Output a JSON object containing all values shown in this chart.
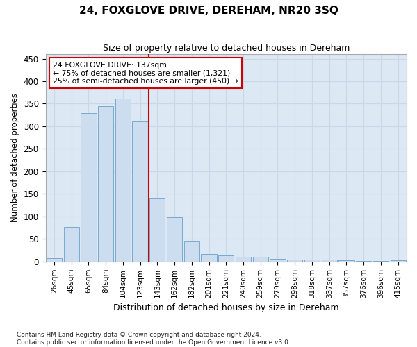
{
  "title": "24, FOXGLOVE DRIVE, DEREHAM, NR20 3SQ",
  "subtitle": "Size of property relative to detached houses in Dereham",
  "xlabel": "Distribution of detached houses by size in Dereham",
  "ylabel": "Number of detached properties",
  "categories": [
    "26sqm",
    "45sqm",
    "65sqm",
    "84sqm",
    "104sqm",
    "123sqm",
    "143sqm",
    "162sqm",
    "182sqm",
    "201sqm",
    "221sqm",
    "240sqm",
    "259sqm",
    "279sqm",
    "298sqm",
    "318sqm",
    "337sqm",
    "357sqm",
    "376sqm",
    "396sqm",
    "415sqm"
  ],
  "values": [
    7,
    76,
    329,
    345,
    362,
    310,
    140,
    98,
    46,
    16,
    14,
    11,
    10,
    6,
    5,
    5,
    4,
    3,
    2,
    1,
    3
  ],
  "bar_color": "#ccddf0",
  "bar_edge_color": "#7aaacf",
  "vline_pos": 6.5,
  "vline_color": "#cc0000",
  "annotation_text": "24 FOXGLOVE DRIVE: 137sqm\n← 75% of detached houses are smaller (1,321)\n25% of semi-detached houses are larger (450) →",
  "annotation_box_facecolor": "#ffffff",
  "annotation_box_edgecolor": "#cc0000",
  "grid_color": "#c8d8e8",
  "background_color": "#dce8f4",
  "footer_line1": "Contains HM Land Registry data © Crown copyright and database right 2024.",
  "footer_line2": "Contains public sector information licensed under the Open Government Licence v3.0.",
  "ylim": [
    0,
    460
  ],
  "yticks": [
    0,
    50,
    100,
    150,
    200,
    250,
    300,
    350,
    400,
    450
  ]
}
